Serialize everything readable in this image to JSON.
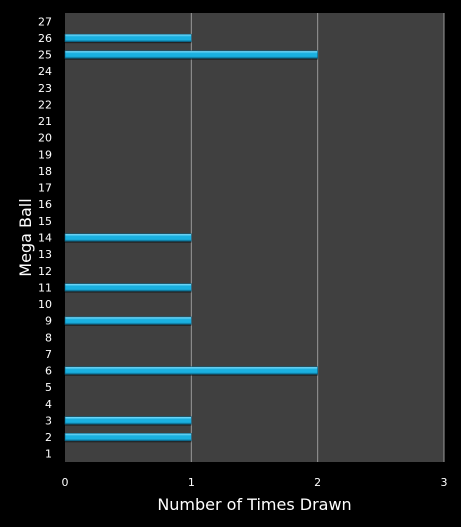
{
  "chart_data": {
    "type": "bar",
    "orientation": "horizontal",
    "title": "",
    "xlabel": "Number of Times Drawn",
    "ylabel": "Mega Ball",
    "categories": [
      "1",
      "2",
      "3",
      "4",
      "5",
      "6",
      "7",
      "8",
      "9",
      "10",
      "11",
      "12",
      "13",
      "14",
      "15",
      "16",
      "17",
      "18",
      "19",
      "20",
      "21",
      "22",
      "23",
      "24",
      "25",
      "26",
      "27"
    ],
    "values": [
      0,
      1,
      1,
      0,
      0,
      2,
      0,
      0,
      1,
      0,
      1,
      0,
      0,
      1,
      0,
      0,
      0,
      0,
      0,
      0,
      0,
      0,
      0,
      0,
      2,
      1,
      0
    ],
    "xlim": [
      0,
      3
    ],
    "xticks": [
      "0",
      "1",
      "2",
      "3"
    ],
    "grid": true,
    "legend": "none",
    "colors": {
      "background": "#000000",
      "plot_area": "#404040",
      "gridline": "#9a9a9a",
      "bar": "#1ab0e0",
      "bar_highlight": "#8fe3ff",
      "bar_shadow": "#0a5f7f",
      "text": "#ffffff"
    }
  }
}
